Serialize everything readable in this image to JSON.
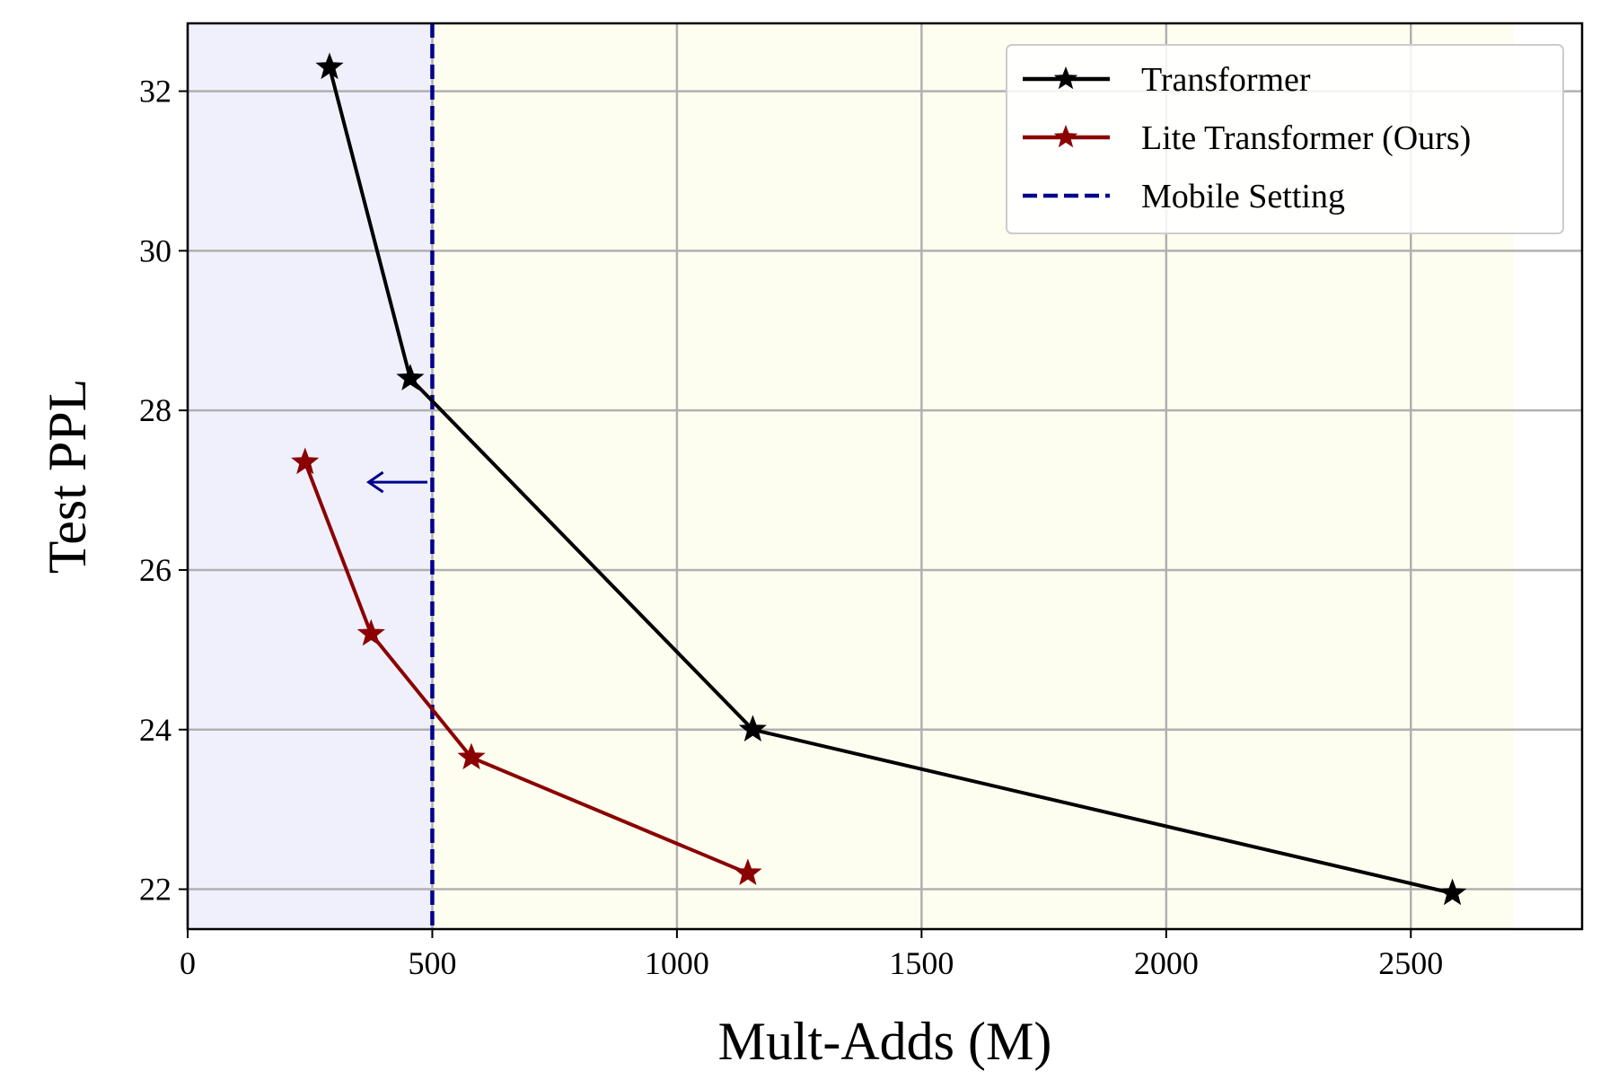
{
  "chart_data": {
    "type": "line",
    "title": "",
    "xlabel": "Mult-Adds (M)",
    "ylabel": "Test PPL",
    "xlim": [
      0,
      2850
    ],
    "ylim": [
      21.5,
      32.85
    ],
    "xticks": [
      0,
      500,
      1000,
      1500,
      2000,
      2500
    ],
    "yticks": [
      22,
      24,
      26,
      28,
      30,
      32
    ],
    "grid": true,
    "legend_position": "top-right",
    "regions": [
      {
        "x_from": 0,
        "x_to": 500,
        "color": "#f0f0fd"
      },
      {
        "x_from": 500,
        "x_to": 2710,
        "color": "#fefef0"
      }
    ],
    "series": [
      {
        "name": "Transformer",
        "color": "#000000",
        "marker": "star",
        "x": [
          290,
          455,
          1155,
          2585
        ],
        "y": [
          32.3,
          28.4,
          24.0,
          21.95
        ]
      },
      {
        "name": "Lite Transformer (Ours)",
        "color": "#8b0000",
        "marker": "star",
        "x": [
          240,
          375,
          580,
          1145
        ],
        "y": [
          27.35,
          25.2,
          23.65,
          22.2
        ]
      }
    ],
    "reference_line": {
      "name": "Mobile Setting",
      "x": 500,
      "color": "#00008b",
      "style": "dashed"
    },
    "annotation": {
      "type": "arrow",
      "from": [
        490,
        27.1
      ],
      "to": [
        370,
        27.1
      ],
      "color": "#00008b"
    }
  }
}
